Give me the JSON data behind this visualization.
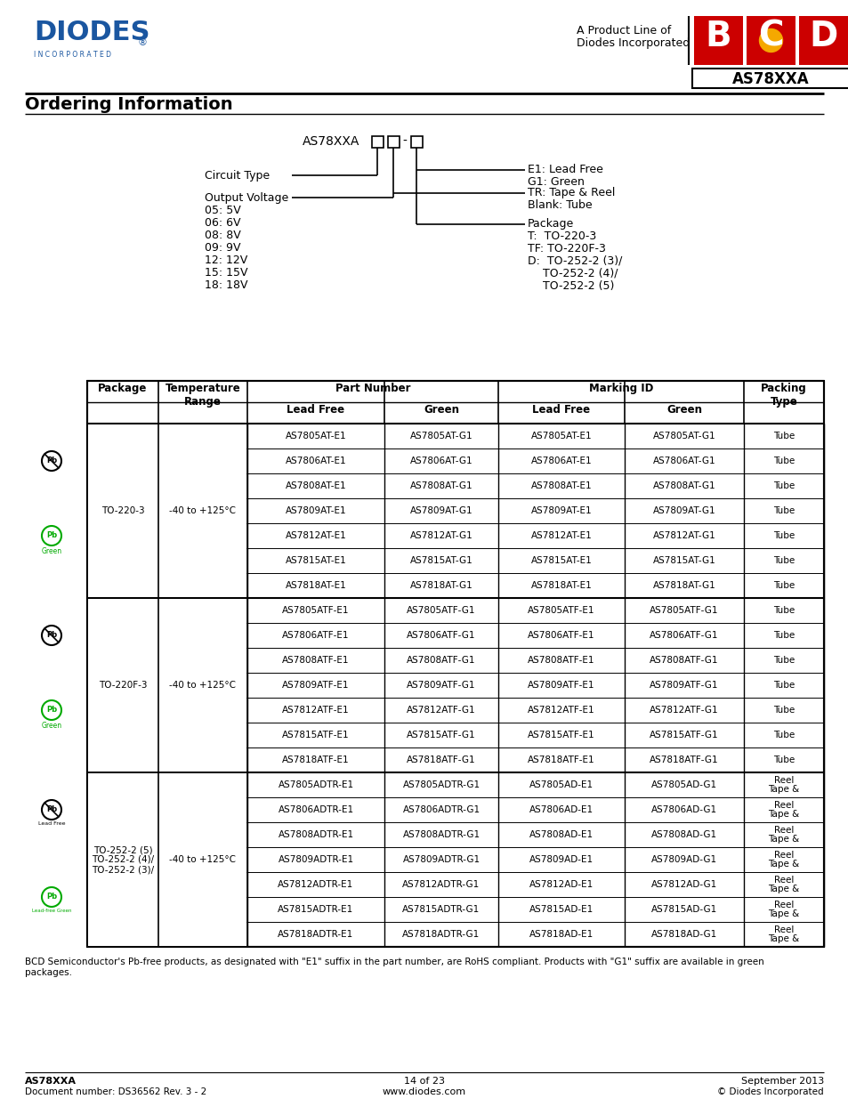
{
  "title": "AS78XXA",
  "section_title": "Ordering Information",
  "page_info": "14 of 23",
  "page_url": "www.diodes.com",
  "doc_number": "Document number: DS36562 Rev. 3 - 2",
  "date": "September 2013",
  "copyright": "© Diodes Incorporated",
  "part_name_doc": "AS78XXA",
  "footer_note": "BCD Semiconductor's Pb-free products, as designated with \"E1\" suffix in the part number, are RoHS compliant. Products with \"G1\" suffix are available in green\npackages.",
  "table_data": [
    [
      "TO-220-3",
      "-40 to +125°C",
      "AS7805AT-E1",
      "AS7805AT-G1",
      "AS7805AT-E1",
      "AS7805AT-G1",
      "Tube"
    ],
    [
      "",
      "",
      "AS7806AT-E1",
      "AS7806AT-G1",
      "AS7806AT-E1",
      "AS7806AT-G1",
      "Tube"
    ],
    [
      "",
      "",
      "AS7808AT-E1",
      "AS7808AT-G1",
      "AS7808AT-E1",
      "AS7808AT-G1",
      "Tube"
    ],
    [
      "",
      "",
      "AS7809AT-E1",
      "AS7809AT-G1",
      "AS7809AT-E1",
      "AS7809AT-G1",
      "Tube"
    ],
    [
      "",
      "",
      "AS7812AT-E1",
      "AS7812AT-G1",
      "AS7812AT-E1",
      "AS7812AT-G1",
      "Tube"
    ],
    [
      "",
      "",
      "AS7815AT-E1",
      "AS7815AT-G1",
      "AS7815AT-E1",
      "AS7815AT-G1",
      "Tube"
    ],
    [
      "",
      "",
      "AS7818AT-E1",
      "AS7818AT-G1",
      "AS7818AT-E1",
      "AS7818AT-G1",
      "Tube"
    ],
    [
      "TO-220F-3",
      "-40 to +125°C",
      "AS7805ATF-E1",
      "AS7805ATF-G1",
      "AS7805ATF-E1",
      "AS7805ATF-G1",
      "Tube"
    ],
    [
      "",
      "",
      "AS7806ATF-E1",
      "AS7806ATF-G1",
      "AS7806ATF-E1",
      "AS7806ATF-G1",
      "Tube"
    ],
    [
      "",
      "",
      "AS7808ATF-E1",
      "AS7808ATF-G1",
      "AS7808ATF-E1",
      "AS7808ATF-G1",
      "Tube"
    ],
    [
      "",
      "",
      "AS7809ATF-E1",
      "AS7809ATF-G1",
      "AS7809ATF-E1",
      "AS7809ATF-G1",
      "Tube"
    ],
    [
      "",
      "",
      "AS7812ATF-E1",
      "AS7812ATF-G1",
      "AS7812ATF-E1",
      "AS7812ATF-G1",
      "Tube"
    ],
    [
      "",
      "",
      "AS7815ATF-E1",
      "AS7815ATF-G1",
      "AS7815ATF-E1",
      "AS7815ATF-G1",
      "Tube"
    ],
    [
      "",
      "",
      "AS7818ATF-E1",
      "AS7818ATF-G1",
      "AS7818ATF-E1",
      "AS7818ATF-G1",
      "Tube"
    ],
    [
      "TO-252-2 (3)/\nTO-252-2 (4)/\nTO-252-2 (5)",
      "-40 to +125°C",
      "AS7805ADTR-E1",
      "AS7805ADTR-G1",
      "AS7805AD-E1",
      "AS7805AD-G1",
      "Tape &\nReel"
    ],
    [
      "",
      "",
      "AS7806ADTR-E1",
      "AS7806ADTR-G1",
      "AS7806AD-E1",
      "AS7806AD-G1",
      "Tape &\nReel"
    ],
    [
      "",
      "",
      "AS7808ADTR-E1",
      "AS7808ADTR-G1",
      "AS7808AD-E1",
      "AS7808AD-G1",
      "Tape &\nReel"
    ],
    [
      "",
      "",
      "AS7809ADTR-E1",
      "AS7809ADTR-G1",
      "AS7809AD-E1",
      "AS7809AD-G1",
      "Tape &\nReel"
    ],
    [
      "",
      "",
      "AS7812ADTR-E1",
      "AS7812ADTR-G1",
      "AS7812AD-E1",
      "AS7812AD-G1",
      "Tape &\nReel"
    ],
    [
      "",
      "",
      "AS7815ADTR-E1",
      "AS7815ADTR-G1",
      "AS7815AD-E1",
      "AS7815AD-G1",
      "Tape &\nReel"
    ],
    [
      "",
      "",
      "AS7818ADTR-E1",
      "AS7818ADTR-G1",
      "AS7818AD-E1",
      "AS7818AD-G1",
      "Tape &\nReel"
    ]
  ],
  "diodes_logo_color": "#1a56a0",
  "bcd_red": "#cc0000",
  "bcd_yellow": "#f5a800",
  "green_color": "#00aa00",
  "black": "#000000",
  "white": "#ffffff"
}
